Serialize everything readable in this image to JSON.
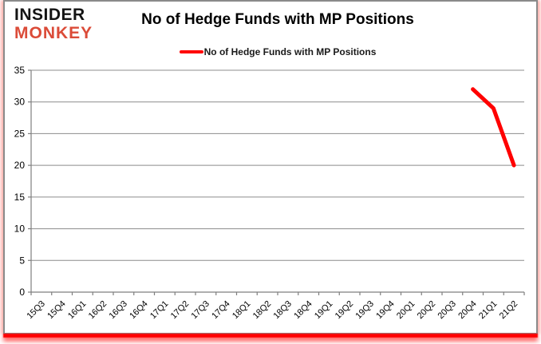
{
  "logo": {
    "line1": "INSIDER",
    "line2": "MONKEY"
  },
  "header": {
    "title": "No of Hedge Funds with MP Positions"
  },
  "legend": {
    "label": "No of Hedge Funds with MP Positions"
  },
  "colors": {
    "series": "#FF0000",
    "grid": "#8c8c8c",
    "axis": "#7f7f7f",
    "tick_text": "#000000",
    "logo_top": "#141414",
    "logo_bottom": "#DB4B38",
    "card_border": "#8a8a8a",
    "bottom_bar": "#FF0000"
  },
  "chart_data": {
    "type": "line",
    "title": "No of Hedge Funds with MP Positions",
    "categories": [
      "15Q3",
      "15Q4",
      "16Q1",
      "16Q2",
      "16Q3",
      "16Q4",
      "17Q1",
      "17Q2",
      "17Q3",
      "17Q4",
      "18Q1",
      "18Q2",
      "18Q3",
      "18Q4",
      "19Q1",
      "19Q2",
      "19Q3",
      "19Q4",
      "20Q1",
      "20Q2",
      "20Q3",
      "20Q4",
      "21Q1",
      "21Q2"
    ],
    "series": [
      {
        "name": "No of Hedge Funds with MP Positions",
        "color": "#FF0000",
        "values": [
          null,
          null,
          null,
          null,
          null,
          null,
          null,
          null,
          null,
          null,
          null,
          null,
          null,
          null,
          null,
          null,
          null,
          null,
          null,
          null,
          null,
          32,
          29,
          20
        ]
      }
    ],
    "xlabel": "",
    "ylabel": "",
    "ylim": [
      0,
      35
    ],
    "ytick_step": 5,
    "grid": true,
    "legend_position": "top"
  }
}
